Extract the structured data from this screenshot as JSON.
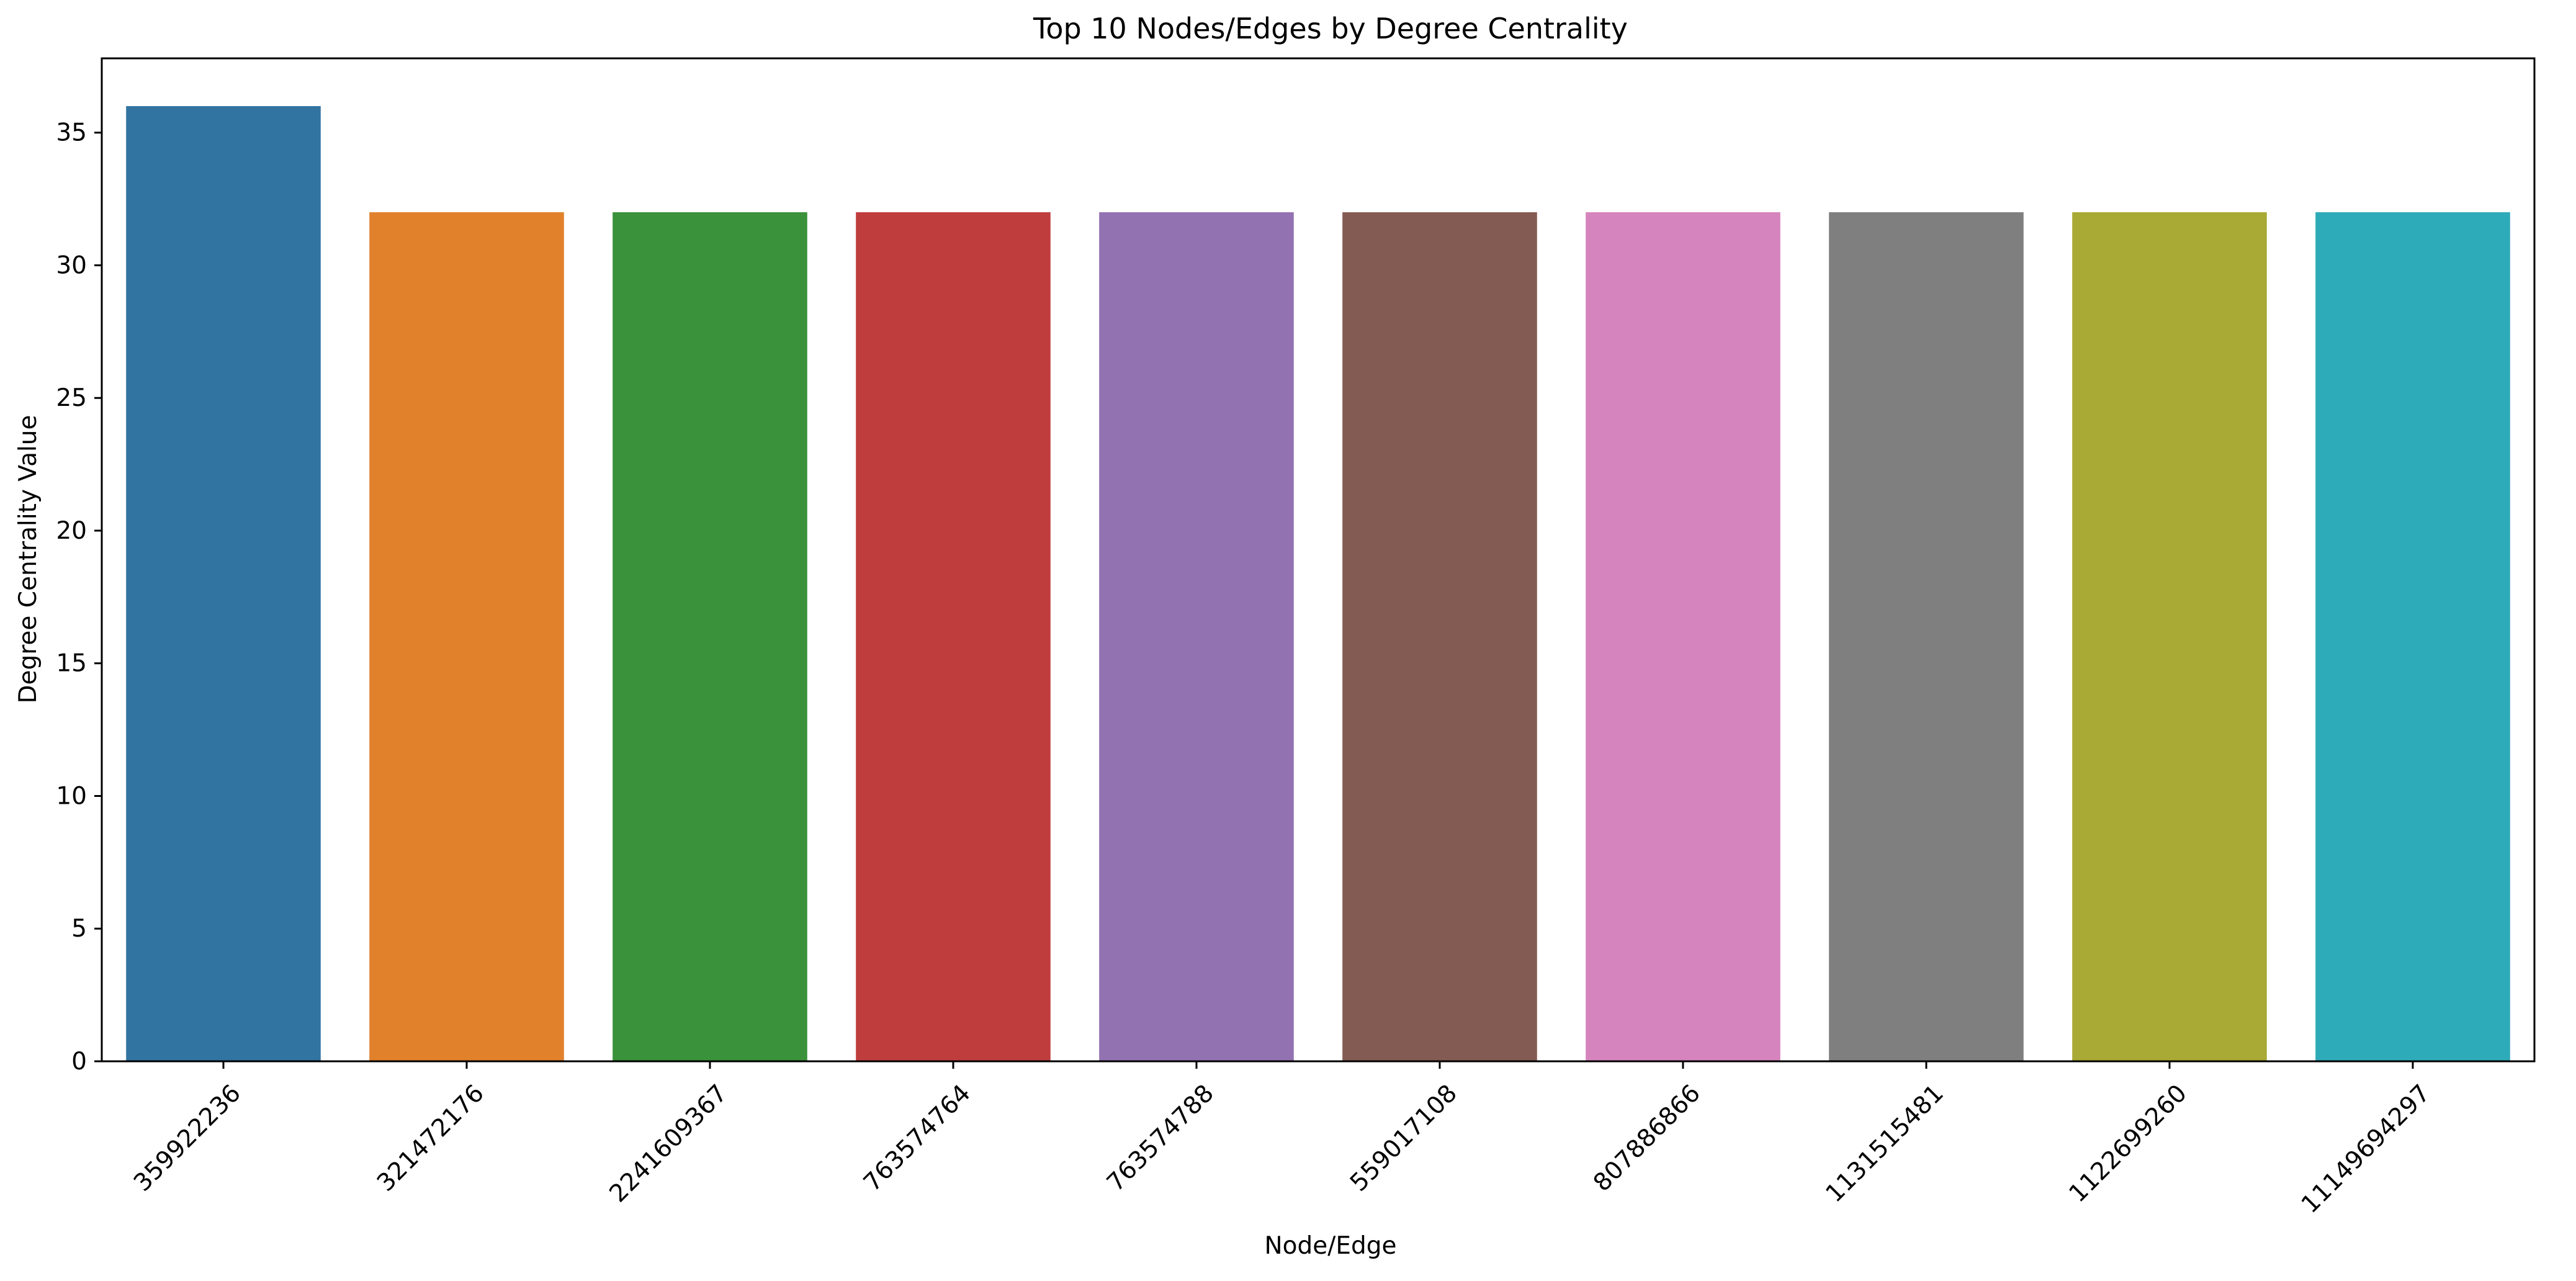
{
  "chart_data": {
    "type": "bar",
    "title": "Top 10 Nodes/Edges by Degree Centrality",
    "xlabel": "Node/Edge",
    "ylabel": "Degree Centrality Value",
    "categories": [
      "359922236",
      "321472176",
      "2241609367",
      "763574764",
      "763574788",
      "559017108",
      "807886866",
      "1131515481",
      "1122699260",
      "11149694297"
    ],
    "values": [
      36,
      32,
      32,
      32,
      32,
      32,
      32,
      32,
      32,
      32
    ],
    "colors": [
      "#3274a1",
      "#e1812c",
      "#3a923a",
      "#c03d3e",
      "#9372b2",
      "#845b53",
      "#d684bd",
      "#7f7f7f",
      "#a9aa35",
      "#2eabb8"
    ],
    "ylim": [
      0,
      37.8
    ],
    "yticks": [
      0,
      5,
      10,
      15,
      20,
      25,
      30,
      35
    ],
    "xtick_rotation_deg": 45,
    "grid": false,
    "legend": "none"
  }
}
